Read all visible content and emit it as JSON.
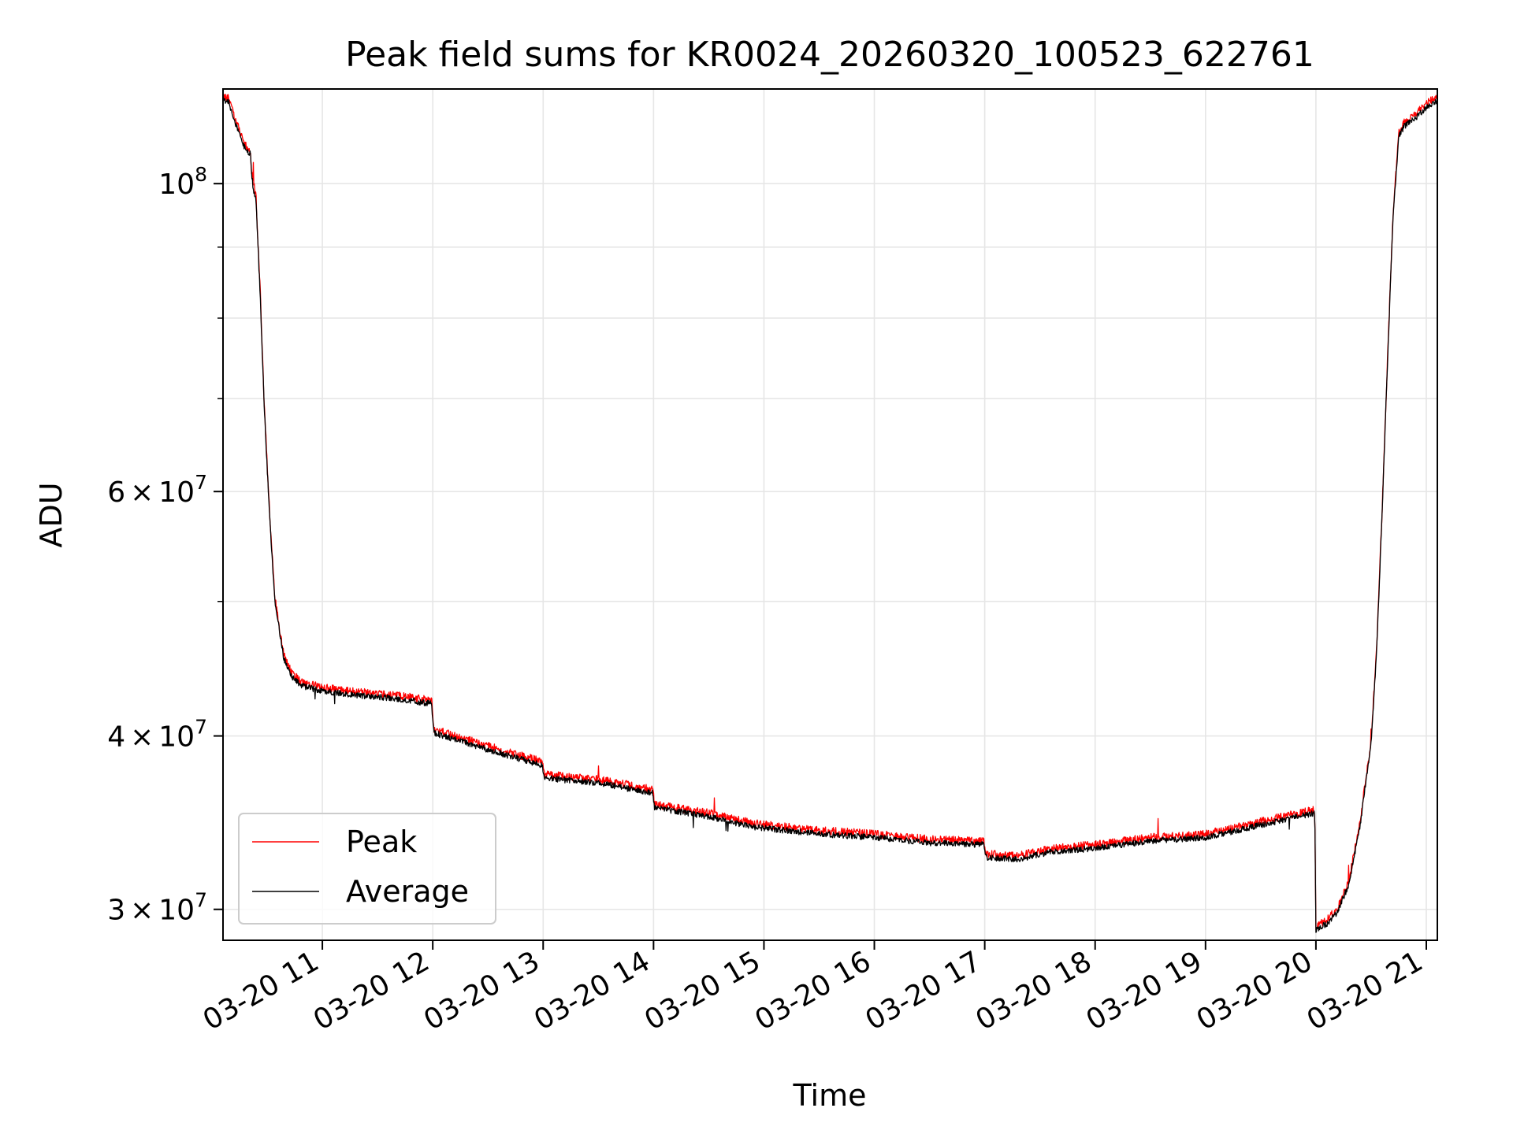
{
  "chart_data": {
    "type": "line",
    "title": "Peak field sums for KR0024_20260320_100523_622761",
    "xlabel": "Time",
    "ylabel": "ADU",
    "yscale": "log",
    "ylim": [
      28500000,
      117000000
    ],
    "xlim_hours": [
      10.1,
      21.1
    ],
    "grid": true,
    "legend_position": "lower-left",
    "x_ticks": [
      {
        "hour": 11,
        "label": "03-20 11"
      },
      {
        "hour": 12,
        "label": "03-20 12"
      },
      {
        "hour": 13,
        "label": "03-20 13"
      },
      {
        "hour": 14,
        "label": "03-20 14"
      },
      {
        "hour": 15,
        "label": "03-20 15"
      },
      {
        "hour": 16,
        "label": "03-20 16"
      },
      {
        "hour": 17,
        "label": "03-20 17"
      },
      {
        "hour": 18,
        "label": "03-20 18"
      },
      {
        "hour": 19,
        "label": "03-20 19"
      },
      {
        "hour": 20,
        "label": "03-20 20"
      },
      {
        "hour": 21,
        "label": "03-20 21"
      }
    ],
    "y_major_ticks": [
      {
        "value": 100000000,
        "base": "10",
        "exp": "8"
      },
      {
        "value": 60000000,
        "mant": "6",
        "times": "×",
        "base": "10",
        "exp": "7"
      },
      {
        "value": 40000000,
        "mant": "4",
        "times": "×",
        "base": "10",
        "exp": "7"
      },
      {
        "value": 30000000,
        "mant": "3",
        "times": "×",
        "base": "10",
        "exp": "7"
      }
    ],
    "y_minor_gridlines": [
      90000000,
      80000000,
      70000000,
      50000000
    ],
    "series": [
      {
        "name": "Peak",
        "color": "#ff0000",
        "offset_ratio": 1.006,
        "noise": 0.0065
      },
      {
        "name": "Average",
        "color": "#000000",
        "offset_ratio": 1.0,
        "noise": 0.005
      }
    ],
    "trend_hours": [
      10.1,
      10.15,
      10.22,
      10.3,
      10.35,
      10.36,
      10.4,
      10.44,
      10.47,
      10.52,
      10.57,
      10.65,
      10.72,
      10.8,
      10.9,
      11.0,
      11.3,
      11.6,
      11.99,
      12.01,
      12.5,
      12.99,
      13.01,
      13.5,
      13.99,
      14.01,
      14.5,
      14.9,
      15.5,
      16.0,
      16.5,
      16.99,
      17.01,
      17.3,
      17.6,
      18.0,
      18.5,
      19.0,
      19.5,
      19.99,
      20.0,
      20.1,
      20.2,
      20.3,
      20.4,
      20.5,
      20.55,
      20.6,
      20.65,
      20.7,
      20.75,
      20.8,
      20.9,
      21.0,
      21.1
    ],
    "trend_values": [
      115000000,
      114500000,
      110000000,
      106000000,
      105000000,
      101000000,
      97000000,
      82000000,
      70000000,
      58000000,
      50000000,
      45500000,
      44200000,
      43500000,
      43300000,
      43100000,
      42800000,
      42600000,
      42200000,
      40200000,
      39100000,
      38100000,
      37300000,
      37000000,
      36400000,
      35500000,
      35000000,
      34400000,
      34000000,
      33800000,
      33500000,
      33400000,
      32700000,
      32600000,
      33000000,
      33200000,
      33600000,
      33800000,
      34500000,
      35200000,
      29000000,
      29300000,
      29900000,
      31300000,
      34500000,
      39500000,
      46000000,
      58000000,
      75000000,
      95000000,
      108000000,
      110000000,
      111500000,
      113500000,
      114800000
    ]
  }
}
